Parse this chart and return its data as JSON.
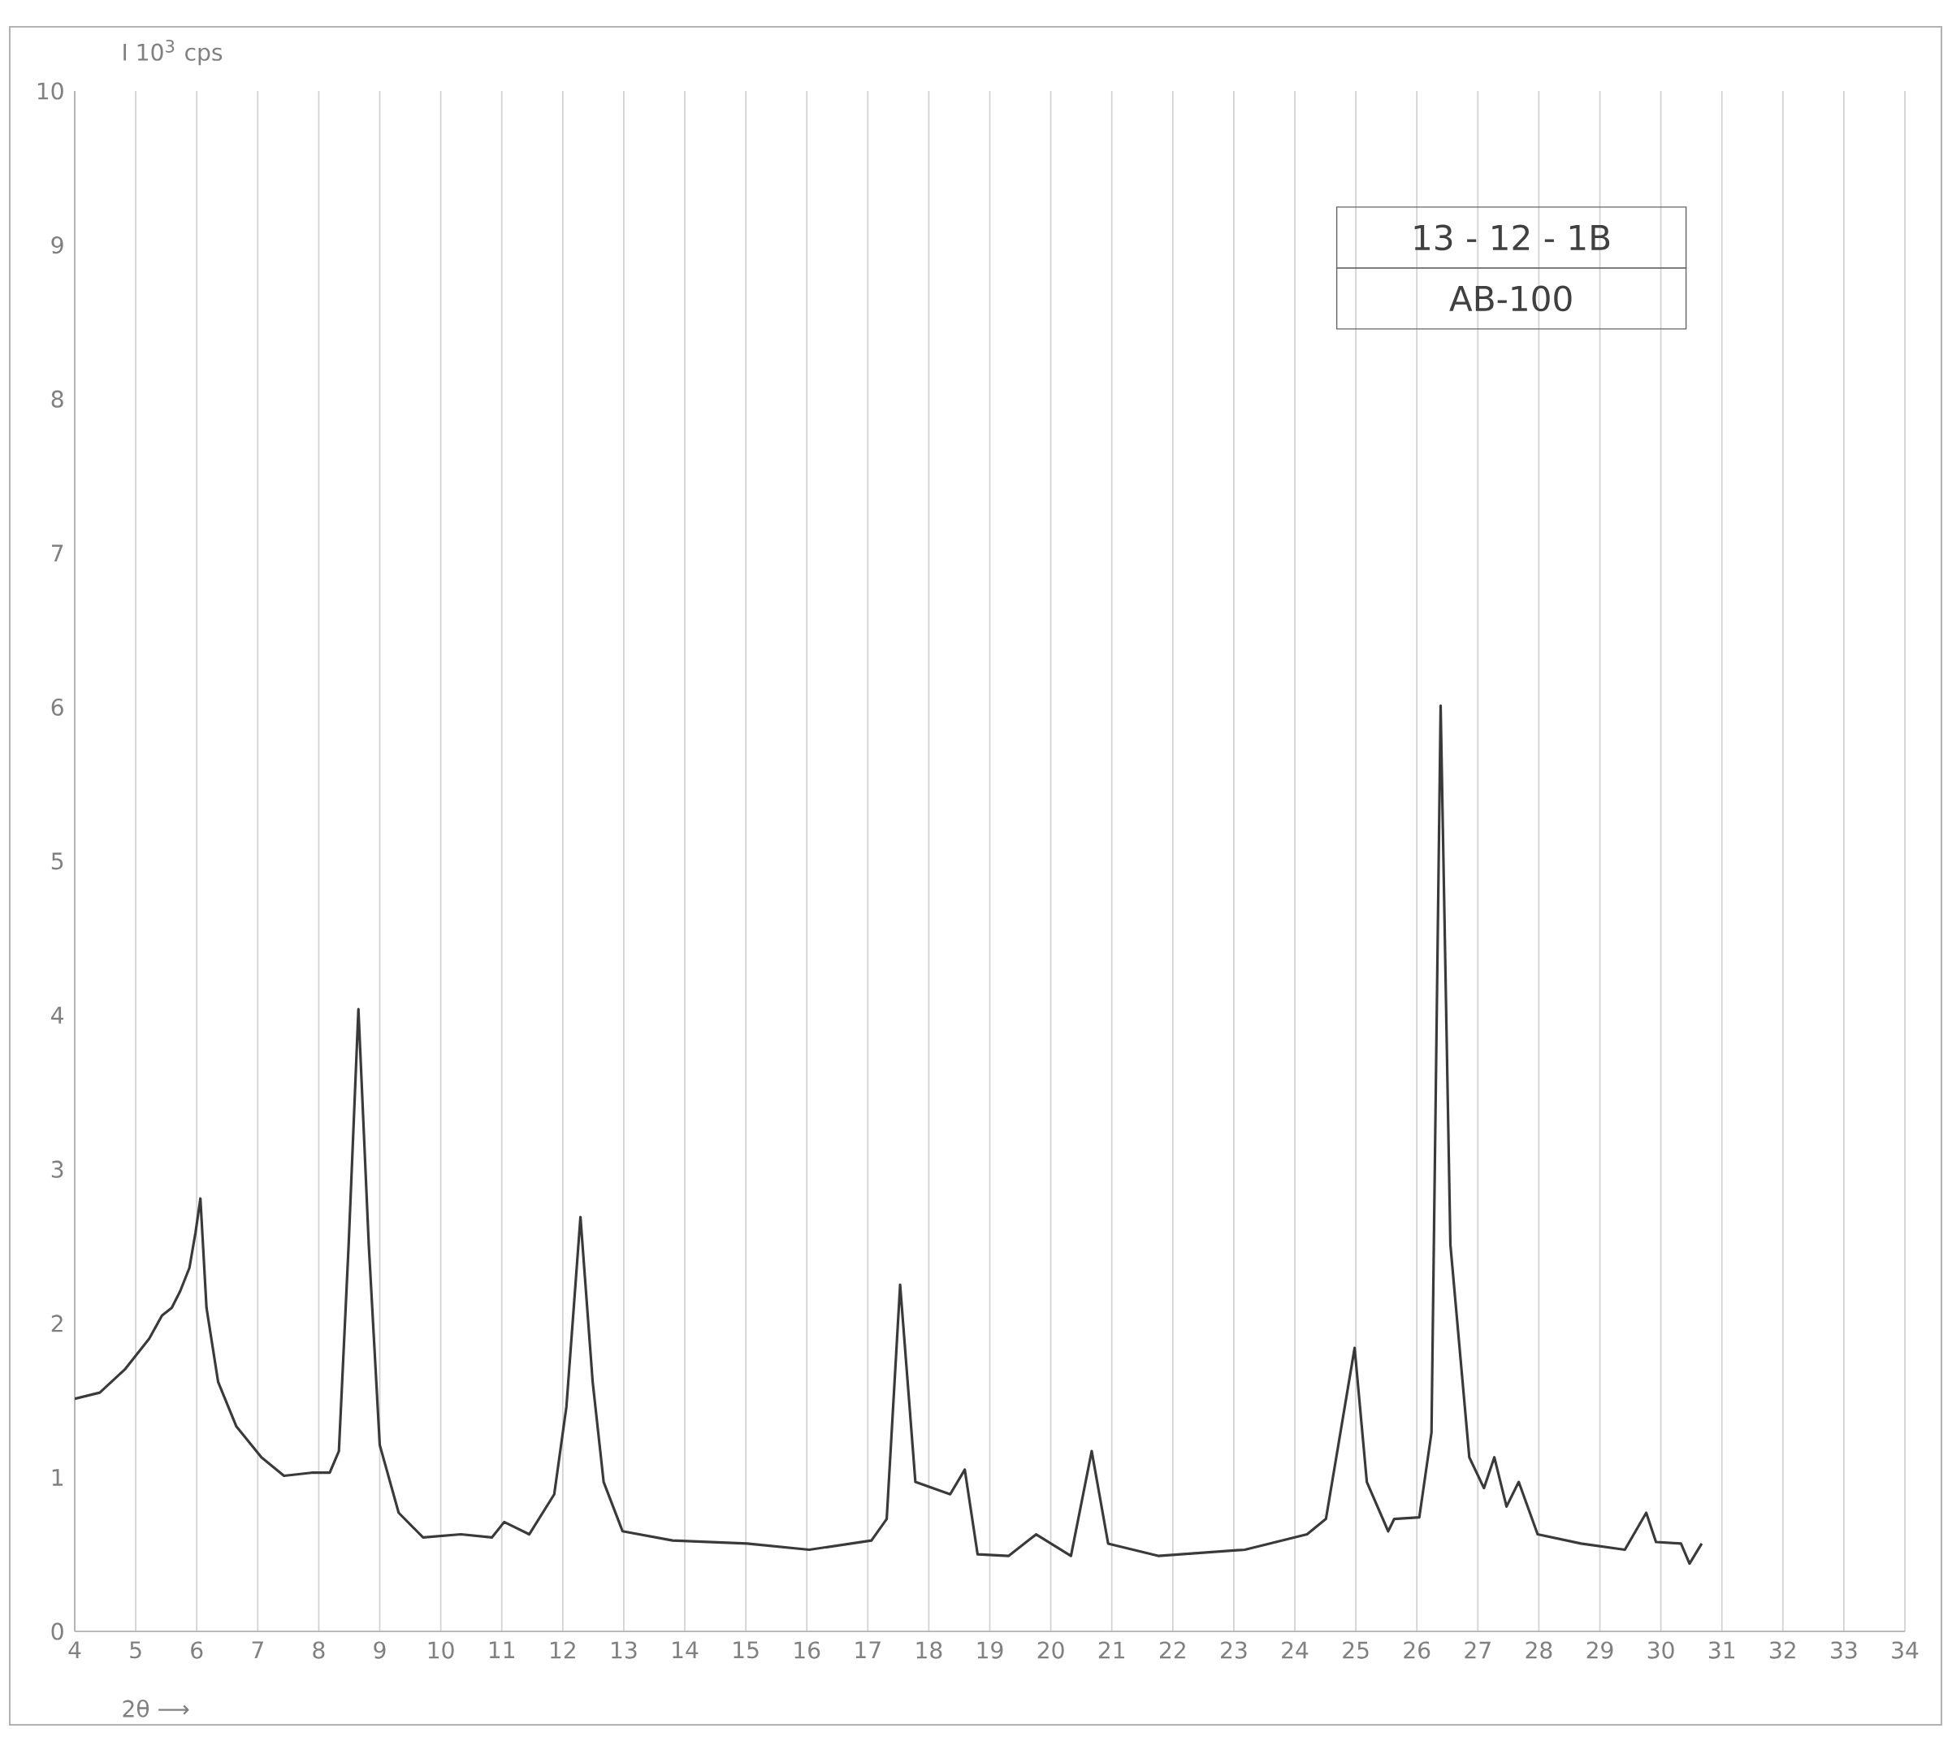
{
  "chart_data": {
    "type": "line",
    "ylabel": "I 10$^{3}$ cps",
    "xlabel": "2θ ⟶",
    "annotations": [
      "13 - 12 - 1B",
      "AB-100"
    ],
    "x": [
      4.0,
      4.41,
      4.82,
      5.22,
      5.43,
      5.59,
      5.73,
      5.88,
      5.98,
      6.06,
      6.16,
      6.35,
      6.65,
      7.06,
      7.43,
      7.88,
      8.18,
      8.33,
      8.49,
      8.65,
      8.82,
      9.0,
      9.31,
      9.71,
      10.33,
      10.84,
      11.04,
      11.45,
      11.86,
      12.06,
      12.29,
      12.49,
      12.67,
      12.98,
      13.8,
      15.02,
      16.04,
      17.06,
      17.31,
      17.53,
      17.78,
      18.35,
      18.59,
      18.8,
      19.31,
      19.76,
      20.33,
      20.67,
      20.94,
      21.76,
      23.18,
      24.2,
      24.51,
      24.98,
      25.18,
      25.53,
      25.63,
      26.04,
      26.24,
      26.39,
      26.55,
      26.86,
      27.1,
      27.27,
      27.47,
      27.67,
      27.98,
      28.69,
      29.41,
      29.76,
      29.92,
      30.33,
      30.47,
      30.67
    ],
    "series": [
      {
        "color": "#3a3a3a",
        "values": [
          1.51,
          1.55,
          1.7,
          1.9,
          2.05,
          2.1,
          2.21,
          2.36,
          2.59,
          2.81,
          2.1,
          1.62,
          1.33,
          1.13,
          1.01,
          1.03,
          1.03,
          1.17,
          2.51,
          4.04,
          2.51,
          1.21,
          0.77,
          0.61,
          0.63,
          0.61,
          0.71,
          0.63,
          0.89,
          1.46,
          2.69,
          1.62,
          0.97,
          0.65,
          0.59,
          0.57,
          0.53,
          0.59,
          0.73,
          2.25,
          0.97,
          0.89,
          1.05,
          0.5,
          0.49,
          0.63,
          0.49,
          1.17,
          0.57,
          0.49,
          0.53,
          0.63,
          0.73,
          1.84,
          0.97,
          0.65,
          0.73,
          0.74,
          1.29,
          6.01,
          2.51,
          1.13,
          0.93,
          1.13,
          0.81,
          0.97,
          0.63,
          0.57,
          0.53,
          0.77,
          0.58,
          0.57,
          0.44,
          0.57
        ]
      }
    ],
    "xlim": [
      4,
      34
    ],
    "ylim": [
      0,
      10
    ],
    "xticks": [
      4,
      5,
      6,
      7,
      8,
      9,
      10,
      11,
      12,
      13,
      14,
      15,
      16,
      17,
      18,
      19,
      20,
      21,
      22,
      23,
      24,
      25,
      26,
      27,
      28,
      29,
      30,
      31,
      32,
      33,
      34
    ],
    "yticks": [
      0,
      1,
      2,
      3,
      4,
      5,
      6,
      7,
      8,
      9,
      10
    ],
    "grid": "x",
    "line_style": "solid",
    "marker": "none"
  }
}
